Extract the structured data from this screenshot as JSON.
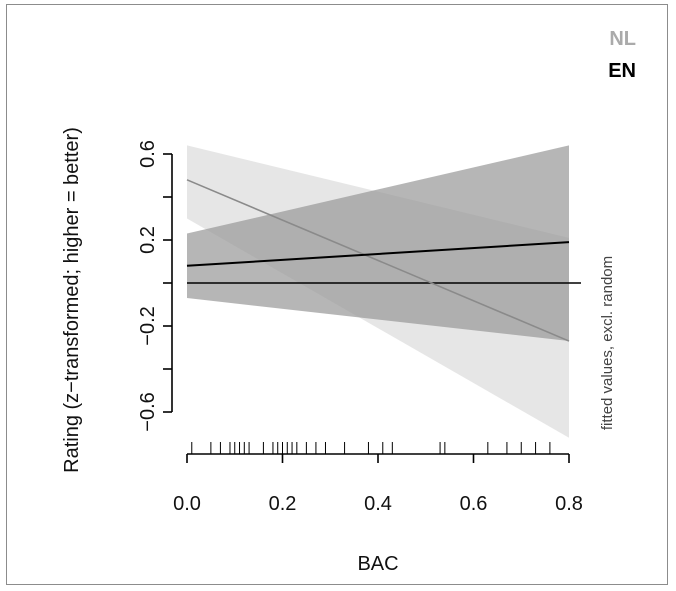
{
  "chart_data": {
    "type": "line",
    "title": "",
    "xlabel": "BAC",
    "ylabel": "Rating (z−transformed; higher = better)",
    "side_note": "fitted values, excl. random",
    "xlim": [
      0,
      0.8
    ],
    "ylim": [
      -0.6,
      0.6
    ],
    "x_ticks": [
      0.0,
      0.2,
      0.4,
      0.6,
      0.8
    ],
    "x_tick_labels": [
      "0.0",
      "0.2",
      "0.4",
      "0.6",
      "0.8"
    ],
    "y_ticks": [
      -0.6,
      -0.4,
      -0.2,
      0,
      0.2,
      0.4,
      0.6
    ],
    "y_tick_labels": [
      "−0.6",
      "",
      "−0.2",
      "",
      "0.2",
      "",
      "0.6"
    ],
    "reference_line_y": 0,
    "rug_x": [
      0.01,
      0.05,
      0.07,
      0.09,
      0.1,
      0.11,
      0.12,
      0.13,
      0.16,
      0.18,
      0.19,
      0.2,
      0.21,
      0.22,
      0.23,
      0.25,
      0.27,
      0.29,
      0.33,
      0.38,
      0.41,
      0.43,
      0.53,
      0.54,
      0.63,
      0.67,
      0.7,
      0.73,
      0.76
    ],
    "legend": [
      {
        "label": "NL",
        "color": "#aaaaaa"
      },
      {
        "label": "EN",
        "color": "#000000"
      }
    ],
    "series": [
      {
        "name": "NL",
        "x": [
          0.0,
          0.8
        ],
        "values": [
          0.48,
          -0.27
        ],
        "ci_lower": [
          0.3,
          -0.72
        ],
        "ci_upper": [
          0.64,
          0.21
        ],
        "line_color": "#8a8a8a",
        "band_color": "#dcdcdc"
      },
      {
        "name": "EN",
        "x": [
          0.0,
          0.8
        ],
        "values": [
          0.08,
          0.19
        ],
        "ci_lower": [
          -0.07,
          -0.27
        ],
        "ci_upper": [
          0.23,
          0.64
        ],
        "line_color": "#000000",
        "band_color": "#9a9a9a"
      }
    ]
  }
}
